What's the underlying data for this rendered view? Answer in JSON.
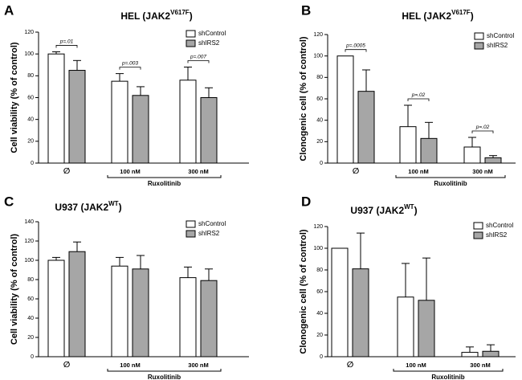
{
  "chart_data": [
    {
      "panel_letter": "A",
      "type": "bar",
      "title_main": "HEL (JAK2",
      "title_sup": "V617F",
      "title_end": ")",
      "ylabel": "Cell viability (% of control)",
      "xlabel": "Ruxolitinib",
      "ylim": [
        0,
        120
      ],
      "yticks": [
        0,
        20,
        40,
        60,
        80,
        100,
        120
      ],
      "categories": [
        "∅",
        "100 nM",
        "300 nM"
      ],
      "series": [
        {
          "name": "shControl",
          "values": [
            100,
            75,
            76
          ],
          "errors": [
            2,
            7,
            12
          ]
        },
        {
          "name": "shIRS2",
          "values": [
            85,
            62,
            60
          ],
          "errors": [
            9,
            8,
            9
          ]
        }
      ],
      "annotations": [
        "p=.01",
        "p=.003",
        "p=.007"
      ],
      "legend_position": "top-right"
    },
    {
      "panel_letter": "B",
      "type": "bar",
      "title_main": "HEL (JAK2",
      "title_sup": "V617F",
      "title_end": ")",
      "ylabel": "Clonogenic cell (% of control)",
      "xlabel": "Ruxolitinib",
      "ylim": [
        0,
        120
      ],
      "yticks": [
        0,
        20,
        40,
        60,
        80,
        100,
        120
      ],
      "categories": [
        "∅",
        "100 nM",
        "300 nM"
      ],
      "series": [
        {
          "name": "shControl",
          "values": [
            100,
            34,
            15
          ],
          "errors": [
            0,
            20,
            9
          ]
        },
        {
          "name": "shIRS2",
          "values": [
            67,
            23,
            5
          ],
          "errors": [
            20,
            15,
            2
          ]
        }
      ],
      "annotations": [
        "p=.0005",
        "p=.02",
        "p=.02"
      ],
      "legend_position": "top-right"
    },
    {
      "panel_letter": "C",
      "type": "bar",
      "title_main": "U937 (JAK2",
      "title_sup": "WT",
      "title_end": ")",
      "ylabel": "Cell viability (% of control)",
      "xlabel": "Ruxolitinib",
      "ylim": [
        0,
        140
      ],
      "yticks": [
        0,
        20,
        40,
        60,
        80,
        100,
        120,
        140
      ],
      "categories": [
        "∅",
        "100 nM",
        "300 nM"
      ],
      "series": [
        {
          "name": "shControl",
          "values": [
            100,
            94,
            82
          ],
          "errors": [
            3,
            9,
            11
          ]
        },
        {
          "name": "shIRS2",
          "values": [
            109,
            91,
            79
          ],
          "errors": [
            10,
            14,
            12
          ]
        }
      ],
      "annotations": [],
      "legend_position": "top-right"
    },
    {
      "panel_letter": "D",
      "type": "bar",
      "title_main": "U937 (JAK2",
      "title_sup": "WT",
      "title_end": ")",
      "ylabel": "Clonogenic cell (% of control)",
      "xlabel": "Ruxolitinib",
      "ylim": [
        0,
        120
      ],
      "yticks": [
        0,
        20,
        40,
        60,
        80,
        100,
        120
      ],
      "categories": [
        "∅",
        "100 nM",
        "300 nM"
      ],
      "series": [
        {
          "name": "shControl",
          "values": [
            100,
            55,
            4
          ],
          "errors": [
            0,
            31,
            5
          ]
        },
        {
          "name": "shIRS2",
          "values": [
            81,
            52,
            5
          ],
          "errors": [
            33,
            39,
            6
          ]
        }
      ],
      "annotations": [],
      "legend_position": "top-left"
    }
  ]
}
